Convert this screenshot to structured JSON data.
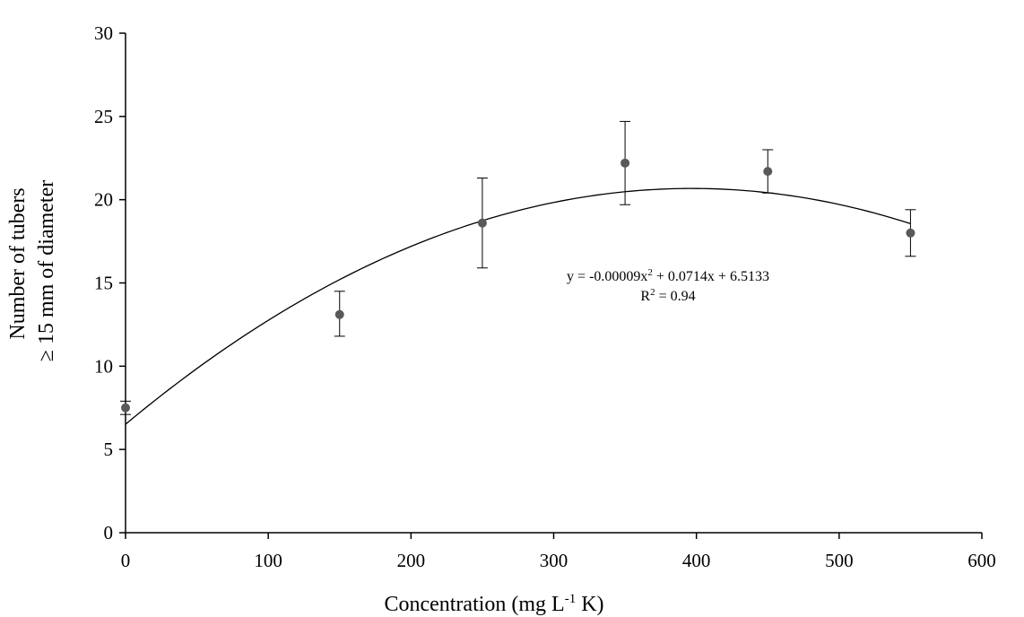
{
  "chart_data": {
    "type": "scatter",
    "xlabel": {
      "main": "Concentration (mg L",
      "sup": "-1",
      "tail": " K)"
    },
    "ylabel": {
      "line1": "Number of tubers",
      "line2": "≥ 15 mm of diameter"
    },
    "xlim": [
      0,
      600
    ],
    "ylim": [
      0,
      30
    ],
    "x_ticks": [
      "0",
      "100",
      "200",
      "300",
      "400",
      "500",
      "600"
    ],
    "y_ticks": [
      "0",
      "5",
      "10",
      "15",
      "20",
      "25",
      "30"
    ],
    "grid": false,
    "points": [
      {
        "x": 0,
        "y": 7.5,
        "err_low": 7.1,
        "err_high": 7.9
      },
      {
        "x": 150,
        "y": 13.1,
        "err_low": 11.8,
        "err_high": 14.5
      },
      {
        "x": 250,
        "y": 18.6,
        "err_low": 15.9,
        "err_high": 21.3
      },
      {
        "x": 350,
        "y": 22.2,
        "err_low": 19.7,
        "err_high": 24.7
      },
      {
        "x": 450,
        "y": 21.7,
        "err_low": 20.4,
        "err_high": 23.0
      },
      {
        "x": 550,
        "y": 18.0,
        "err_low": 16.6,
        "err_high": 19.4
      }
    ],
    "trendline": {
      "coefficients": {
        "a": -9e-05,
        "b": 0.0714,
        "c": 6.5133
      },
      "x_range": [
        0,
        550
      ],
      "equation": {
        "pre": "y = -0.00009x",
        "sup": "2",
        "post": " + 0.0714x + 6.5133"
      },
      "r2": {
        "pre": "R",
        "sup": "2",
        "post": " = 0.94"
      }
    },
    "colors": {
      "point": "#595959",
      "line": "#000000",
      "axis": "#000000"
    }
  }
}
